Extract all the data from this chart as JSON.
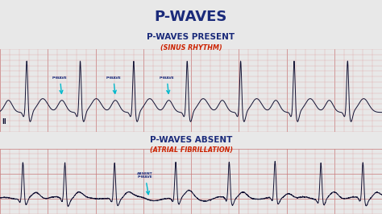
{
  "title": "P-WAVES",
  "title_color": "#1a2a7a",
  "bg_color": "#e8e8e8",
  "section1_title": "P-WAVES PRESENT",
  "section1_subtitle": "(SINUS RHYTHM)",
  "section1_title_color": "#1a2a7a",
  "section1_subtitle_color": "#cc2200",
  "section2_title": "P-WAVES ABSENT",
  "section2_subtitle": "(ATRIAL FIBRILLATION)",
  "section2_title_color": "#1a2a7a",
  "section2_subtitle_color": "#cc2200",
  "ecg1_bg": "#f5e8e8",
  "ecg2_bg": "#f0c8c8",
  "grid_minor_color": "#e0a0a0",
  "grid_major_color": "#c87878",
  "ecg_line_color": "#111133",
  "lead_label": "II",
  "arrow_color": "#00b8cc",
  "label_color": "#1a2a7a",
  "annotation1_labels": [
    "P-WAVE",
    "P-WAVE",
    "P-WAVE"
  ],
  "annotation2_label": "ABSENT\nP-WAVE",
  "figsize": [
    4.74,
    2.66
  ],
  "dpi": 100
}
